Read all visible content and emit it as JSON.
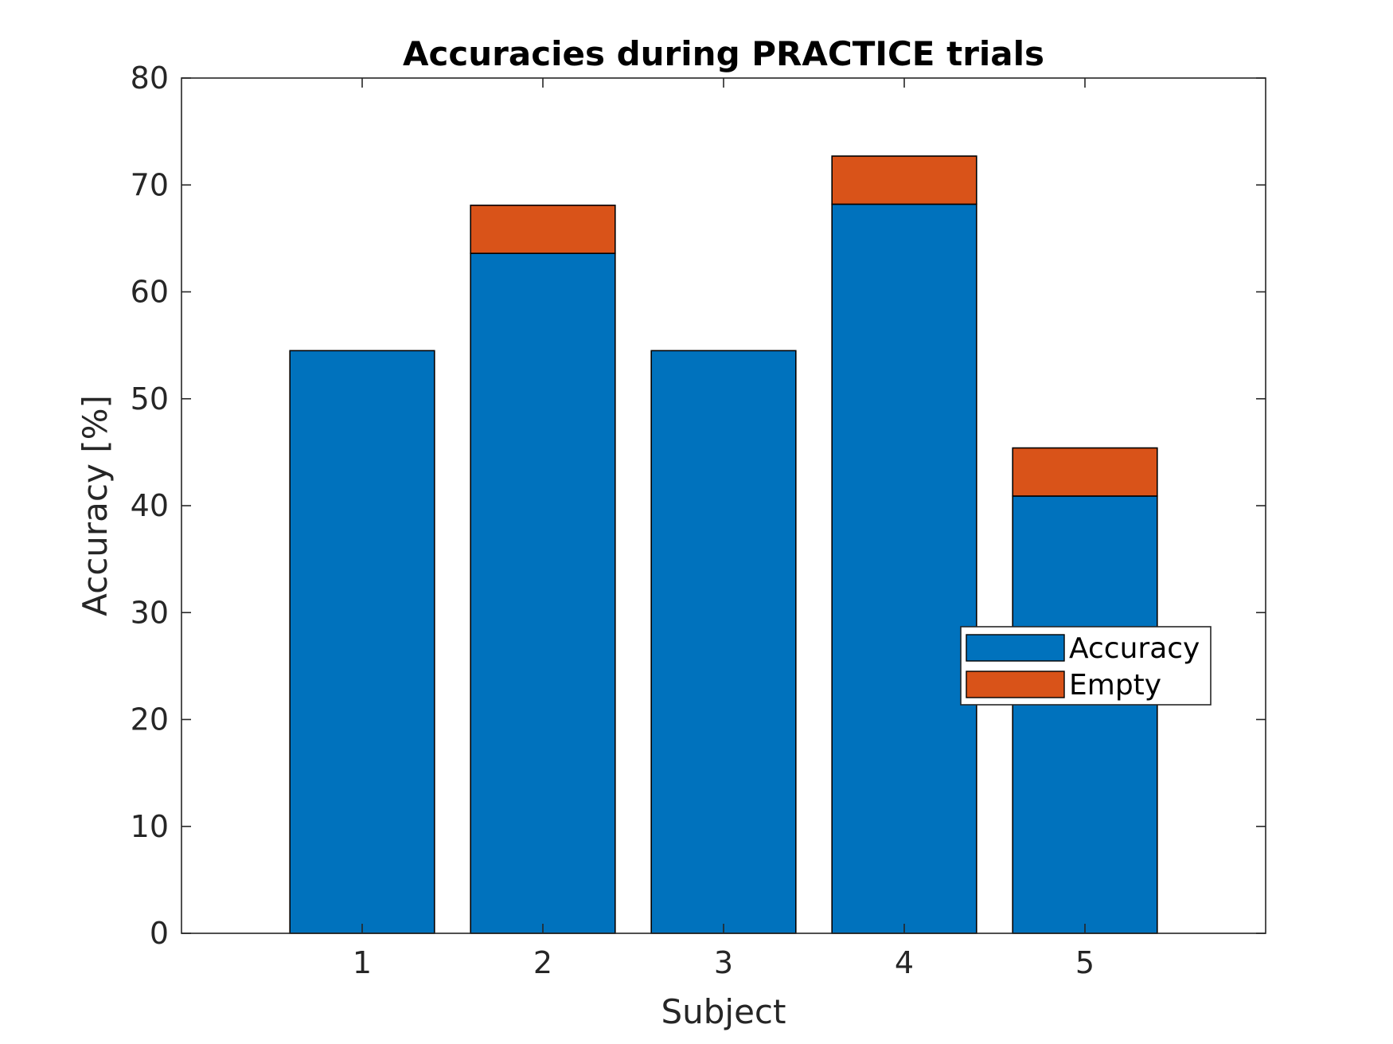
{
  "chart_data": {
    "type": "bar",
    "stacked": true,
    "title": "Accuracies during PRACTICE trials",
    "xlabel": "Subject",
    "ylabel": "Accuracy [%]",
    "categories": [
      "1",
      "2",
      "3",
      "4",
      "5"
    ],
    "xlim": [
      0,
      6
    ],
    "ylim": [
      0,
      80
    ],
    "yticks": [
      0,
      10,
      20,
      30,
      40,
      50,
      60,
      70,
      80
    ],
    "grid": false,
    "legend_position": "right",
    "series": [
      {
        "name": "Accuracy",
        "values": [
          54.5,
          63.6,
          54.5,
          68.2,
          40.9
        ],
        "color": "#0072BD"
      },
      {
        "name": "Empty",
        "values": [
          0,
          4.5,
          0,
          4.5,
          4.5
        ],
        "color": "#D95319"
      }
    ]
  }
}
